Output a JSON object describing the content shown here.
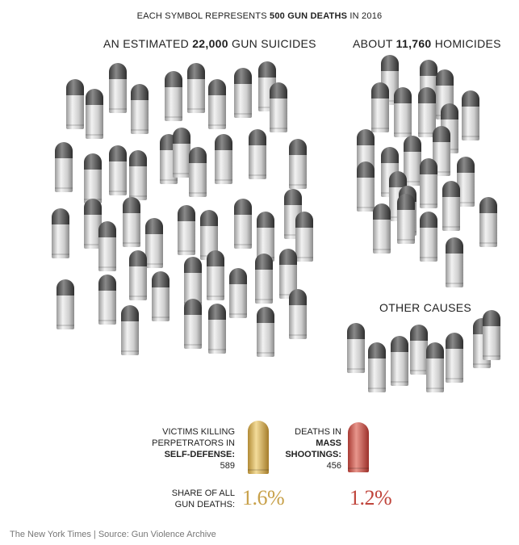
{
  "header": {
    "pre": "EACH SYMBOL REPRESENTS ",
    "bold": "500 GUN DEATHS",
    "post": " IN 2016"
  },
  "chart_data": {
    "type": "unit-pictogram",
    "unit_value": 500,
    "unit_label": "GUN DEATHS",
    "year": "2016",
    "groups": [
      {
        "key": "suicides",
        "label_pre": "AN ESTIMATED ",
        "label_bold": "22,000",
        "label_post": " GUN SUICIDES",
        "value": 22000,
        "symbols": 44,
        "color": "silver"
      },
      {
        "key": "homicides",
        "label_pre": "ABOUT ",
        "label_bold": "11,760",
        "label_post": " HOMICIDES",
        "value": 11760,
        "symbols": 23.5,
        "color": "silver"
      },
      {
        "key": "other",
        "label_pre": "",
        "label_bold": "",
        "label_post": "OTHER CAUSES",
        "value": null,
        "symbols": 8,
        "color": "silver"
      }
    ],
    "highlights": [
      {
        "key": "self_defense",
        "line1": "VICTIMS KILLING",
        "line2": "PERPETRATORS IN",
        "bold1": "SELF-DEFENSE:",
        "value": 589,
        "share": "1.6%",
        "color": "#c8a14a"
      },
      {
        "key": "mass_shootings",
        "line1": "DEATHS IN",
        "bold1": "MASS",
        "bold2": "SHOOTINGS:",
        "value": 456,
        "share": "1.2%",
        "color": "#c0453c"
      }
    ],
    "share_label_line1": "SHARE OF ALL",
    "share_label_line2": "GUN DEATHS:"
  },
  "colors": {
    "gold": "#c8a14a",
    "red": "#c0453c",
    "silver": "#d6d6d6",
    "tip": "#555555"
  },
  "footer": "The New York Times | Source: Gun Violence Archive"
}
